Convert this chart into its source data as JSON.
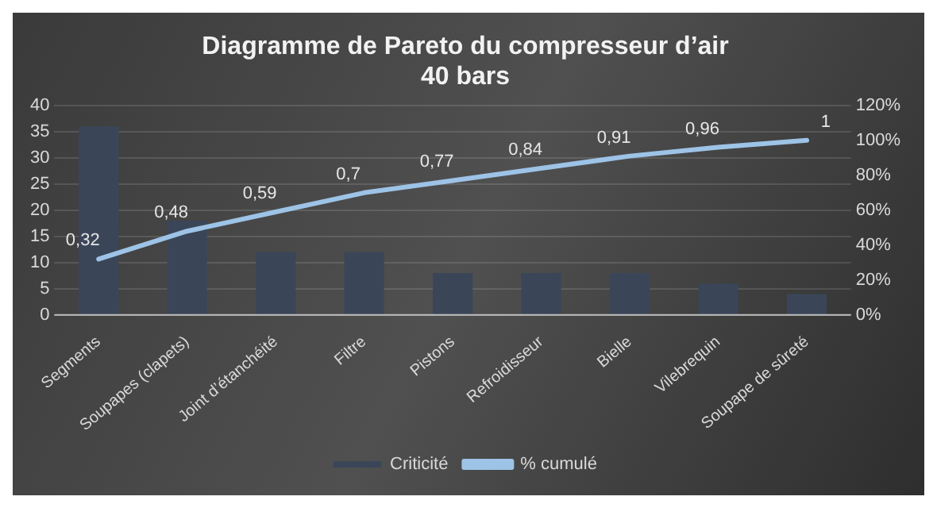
{
  "chart_data": {
    "type": "bar",
    "title": "Diagramme de Pareto du compresseur d’air",
    "subtitle": "40 bars",
    "categories": [
      "Segments",
      "Soupapes (clapets)",
      "Joint d’étanchéité",
      "Filtre",
      "Pistons",
      "Refroidisseur",
      "Bielle",
      "Vilebrequin",
      "Soupape de sûreté"
    ],
    "series": [
      {
        "name": "Criticité",
        "color": "#3a4658",
        "values": [
          36,
          18,
          12,
          12,
          8,
          8,
          8,
          6,
          4
        ]
      },
      {
        "name": "% cumulé",
        "type": "line",
        "axis": "y2",
        "color": "#9dc3e6",
        "values": [
          0.32,
          0.48,
          0.59,
          0.7,
          0.77,
          0.84,
          0.91,
          0.96,
          1
        ],
        "value_labels": [
          "0,32",
          "0,48",
          "0,59",
          "0,7",
          "0,77",
          "0,84",
          "0,91",
          "0,96",
          "1"
        ]
      }
    ],
    "ylim": [
      0,
      40
    ],
    "yticks": [
      0,
      5,
      10,
      15,
      20,
      25,
      30,
      35,
      40
    ],
    "y2lim": [
      0,
      1.2
    ],
    "y2ticks": [
      {
        "value": 0,
        "label": "0%"
      },
      {
        "value": 0.2,
        "label": "20%"
      },
      {
        "value": 0.4,
        "label": "40%"
      },
      {
        "value": 0.6,
        "label": "60%"
      },
      {
        "value": 0.8,
        "label": "80%"
      },
      {
        "value": 1,
        "label": "100%"
      },
      {
        "value": 1.2,
        "label": "120%"
      }
    ],
    "grid": "y",
    "legend": "bottom",
    "marker": "none",
    "line_style": "solid"
  }
}
